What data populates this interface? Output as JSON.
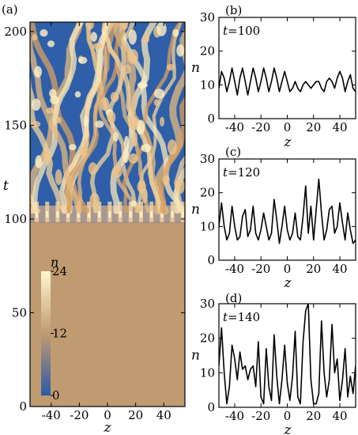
{
  "chart_data": [
    {
      "panel": "(a)",
      "type": "heatmap",
      "xlabel": "z",
      "ylabel": "t",
      "xlim": [
        -55,
        55
      ],
      "ylim": [
        0,
        205
      ],
      "xticks": [
        -40,
        -20,
        0,
        20,
        40
      ],
      "yticks": [
        0,
        50,
        100,
        150,
        200
      ],
      "colorbar": {
        "label": "n",
        "ticks": [
          0,
          12,
          24
        ],
        "range": [
          0,
          24
        ],
        "colors": [
          "#2b5aa6",
          "#c09b72",
          "#fff7d0"
        ]
      },
      "uniform_value_before_t": 100,
      "uniform_value": 12.5,
      "pattern_onset_t": 100
    },
    {
      "panel": "(b)",
      "type": "line",
      "annotation": "t=100",
      "xlabel": "z",
      "ylabel": "n",
      "xlim": [
        -52,
        52
      ],
      "ylim": [
        0,
        30
      ],
      "xticks": [
        -40,
        -20,
        0,
        20,
        40
      ],
      "yticks": [
        0,
        10,
        20,
        30
      ],
      "x": [
        -52,
        -50,
        -48,
        -46,
        -44,
        -42,
        -40,
        -38,
        -36,
        -34,
        -32,
        -30,
        -28,
        -26,
        -24,
        -22,
        -20,
        -18,
        -16,
        -14,
        -12,
        -10,
        -8,
        -6,
        -4,
        -2,
        0,
        2,
        4,
        6,
        8,
        10,
        12,
        14,
        16,
        18,
        20,
        22,
        24,
        26,
        28,
        30,
        32,
        34,
        36,
        38,
        40,
        42,
        44,
        46,
        48,
        50,
        52
      ],
      "values": [
        9,
        14,
        12,
        8,
        11,
        15,
        11,
        7,
        12,
        15,
        11,
        7,
        11,
        15,
        12,
        8,
        11,
        15,
        12,
        8,
        11,
        15,
        12,
        8,
        11,
        14,
        11,
        8,
        9,
        11,
        9,
        8,
        10,
        11,
        10,
        9,
        10,
        11,
        11,
        9,
        8,
        11,
        12,
        11,
        9,
        12,
        14,
        12,
        8,
        11,
        13,
        9,
        8
      ]
    },
    {
      "panel": "(c)",
      "type": "line",
      "annotation": "t=120",
      "xlabel": "z",
      "ylabel": "n",
      "xlim": [
        -52,
        52
      ],
      "ylim": [
        0,
        30
      ],
      "xticks": [
        -40,
        -20,
        0,
        20,
        40
      ],
      "yticks": [
        0,
        10,
        20,
        30
      ],
      "x": [
        -52,
        -50,
        -48,
        -46,
        -44,
        -42,
        -40,
        -38,
        -36,
        -34,
        -32,
        -30,
        -28,
        -26,
        -24,
        -22,
        -20,
        -18,
        -16,
        -14,
        -12,
        -10,
        -8,
        -6,
        -4,
        -2,
        0,
        2,
        4,
        6,
        8,
        10,
        12,
        14,
        16,
        18,
        20,
        22,
        24,
        26,
        28,
        30,
        32,
        34,
        36,
        38,
        40,
        42,
        44,
        46,
        48,
        50,
        52
      ],
      "values": [
        10,
        17,
        10,
        6,
        8,
        16,
        10,
        6,
        7,
        13,
        15,
        7,
        9,
        16,
        8,
        6,
        9,
        14,
        10,
        6,
        8,
        18,
        12,
        5,
        10,
        16,
        9,
        6,
        8,
        14,
        7,
        6,
        13,
        22,
        8,
        16,
        6,
        15,
        24,
        14,
        6,
        9,
        15,
        16,
        8,
        10,
        17,
        11,
        6,
        14,
        9,
        5,
        6
      ]
    },
    {
      "panel": "(d)",
      "type": "line",
      "annotation": "t=140",
      "xlabel": "z",
      "ylabel": "n",
      "xlim": [
        -52,
        52
      ],
      "ylim": [
        0,
        30
      ],
      "xticks": [
        -40,
        -20,
        0,
        20,
        40
      ],
      "yticks": [
        0,
        10,
        20,
        30
      ],
      "x": [
        -52,
        -50,
        -48,
        -46,
        -44,
        -42,
        -40,
        -38,
        -36,
        -34,
        -32,
        -30,
        -28,
        -26,
        -24,
        -22,
        -20,
        -18,
        -16,
        -14,
        -12,
        -10,
        -8,
        -6,
        -4,
        -2,
        0,
        2,
        4,
        6,
        8,
        10,
        12,
        14,
        16,
        18,
        20,
        22,
        24,
        26,
        28,
        30,
        32,
        34,
        36,
        38,
        40,
        42,
        44,
        46,
        48,
        50,
        52
      ],
      "values": [
        12,
        23,
        10,
        1,
        6,
        18,
        14,
        8,
        16,
        11,
        12,
        8,
        11,
        12,
        6,
        19,
        3,
        1,
        17,
        6,
        2,
        21,
        9,
        1,
        8,
        18,
        7,
        2,
        9,
        22,
        3,
        1,
        19,
        28,
        30,
        8,
        1,
        1,
        4,
        25,
        10,
        3,
        8,
        24,
        10,
        14,
        2,
        8,
        17,
        3,
        9,
        4,
        12
      ]
    }
  ]
}
